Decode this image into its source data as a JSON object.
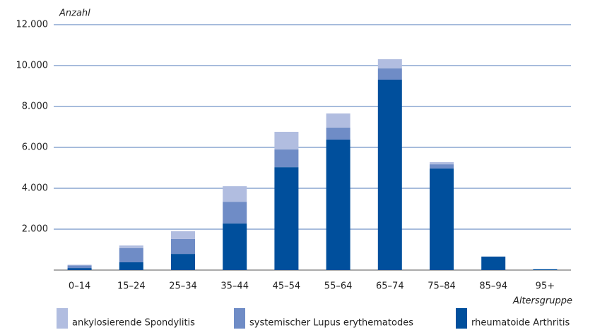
{
  "chart_data": {
    "type": "stacked_bar",
    "y_label": "Anzahl",
    "x_label": "Altersgruppe",
    "categories": [
      "0–14",
      "15–24",
      "25–34",
      "35–44",
      "45–54",
      "55–64",
      "65–74",
      "75–84",
      "85–94",
      "95+"
    ],
    "series": [
      {
        "name": "ankylosierende Spondylitis",
        "color": "#b1bde0",
        "values": [
          30,
          130,
          380,
          760,
          860,
          690,
          450,
          110,
          0,
          0
        ]
      },
      {
        "name": "systemischer Lupus erythematodes",
        "color": "#6f8cc6",
        "values": [
          130,
          690,
          730,
          1060,
          870,
          590,
          550,
          200,
          0,
          0
        ]
      },
      {
        "name": "rheumatoide Arthritis",
        "color": "#004f9c",
        "values": [
          100,
          380,
          790,
          2280,
          5030,
          6380,
          9310,
          4970,
          660,
          40
        ]
      }
    ],
    "ylim": [
      0,
      12000
    ],
    "yticks": [
      {
        "value": 2000,
        "label": "2.000"
      },
      {
        "value": 4000,
        "label": "4.000"
      },
      {
        "value": 6000,
        "label": "6.000"
      },
      {
        "value": 8000,
        "label": "8.000"
      },
      {
        "value": 10000,
        "label": "10.000"
      },
      {
        "value": 12000,
        "label": "12.000"
      }
    ],
    "grid": true
  }
}
